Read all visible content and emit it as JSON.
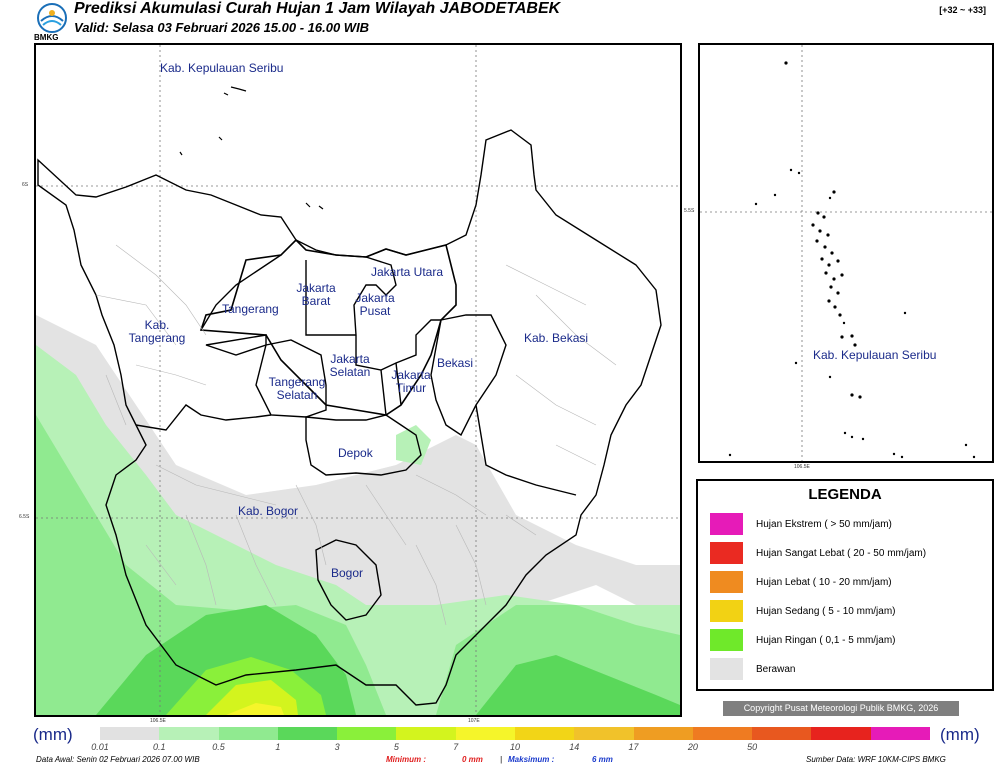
{
  "header": {
    "title": "Prediksi Akumulasi Curah Hujan 1 Jam Wilayah JABODETABEK",
    "subtitle": "Valid: Selasa 03 Februari 2026 15.00 - 16.00 WIB",
    "logo_text": "BMKG",
    "code": "[+32 ~ +33]"
  },
  "main_map": {
    "region_labels": [
      "Kab. Kepulauan Seribu",
      "Jakarta Utara",
      "Jakarta Barat",
      "Jakarta Pusat",
      "Tangerang",
      "Kab. Tangerang",
      "Kab. Bekasi",
      "Jakarta Selatan",
      "Jakarta Timur",
      "Bekasi",
      "Tangerang Selatan",
      "Depok",
      "Kab. Bogor",
      "Bogor"
    ],
    "lat_ticks": [
      "6S",
      "6.5S"
    ],
    "lon_ticks": [
      "106.5E",
      "107E"
    ]
  },
  "inset_map": {
    "label": "Kab. Kepulauan Seribu",
    "lat_tick": "5.5S",
    "lon_tick": "106.5E"
  },
  "legend": {
    "title": "LEGENDA",
    "items": [
      {
        "label": "Hujan Ekstrem ( > 50 mm/jam)",
        "color": "#e61bb8"
      },
      {
        "label": "Hujan Sangat Lebat ( 20 - 50 mm/jam)",
        "color": "#ea2a22"
      },
      {
        "label": "Hujan Lebat ( 10 - 20 mm/jam)",
        "color": "#ef8b20"
      },
      {
        "label": "Hujan Sedang ( 5 - 10 mm/jam)",
        "color": "#f2d214"
      },
      {
        "label": "Hujan Ringan ( 0,1 - 5 mm/jam)",
        "color": "#6fe92a"
      },
      {
        "label": "Berawan",
        "color": "#e3e3e3"
      }
    ]
  },
  "copyright": "Copyright Pusat Meteorologi Publik BMKG, 2026",
  "color_scale": {
    "unit_left": "(mm)",
    "unit_right": "(mm)",
    "colors": [
      "#e1e1e1",
      "#b7f1b7",
      "#90ea90",
      "#5ad85a",
      "#8af03a",
      "#d3f41e",
      "#f5f52a",
      "#f2d517",
      "#f1c22a",
      "#ef9d22",
      "#ef7b21",
      "#e8581f",
      "#e7231e",
      "#e61bb8"
    ],
    "labels": [
      "0.01",
      "0.1",
      "0.5",
      "1",
      "3",
      "5",
      "7",
      "10",
      "14",
      "17",
      "20",
      "50"
    ]
  },
  "footer": {
    "data_awal": "Data Awal: Senin 02 Februari 2026 07.00 WIB",
    "min_label": "Minimum :",
    "min_value": "0 mm",
    "max_label": "Maksimum :",
    "max_value": "6 mm",
    "source": "Sumber Data: WRF 10KM-CIPS BMKG"
  }
}
